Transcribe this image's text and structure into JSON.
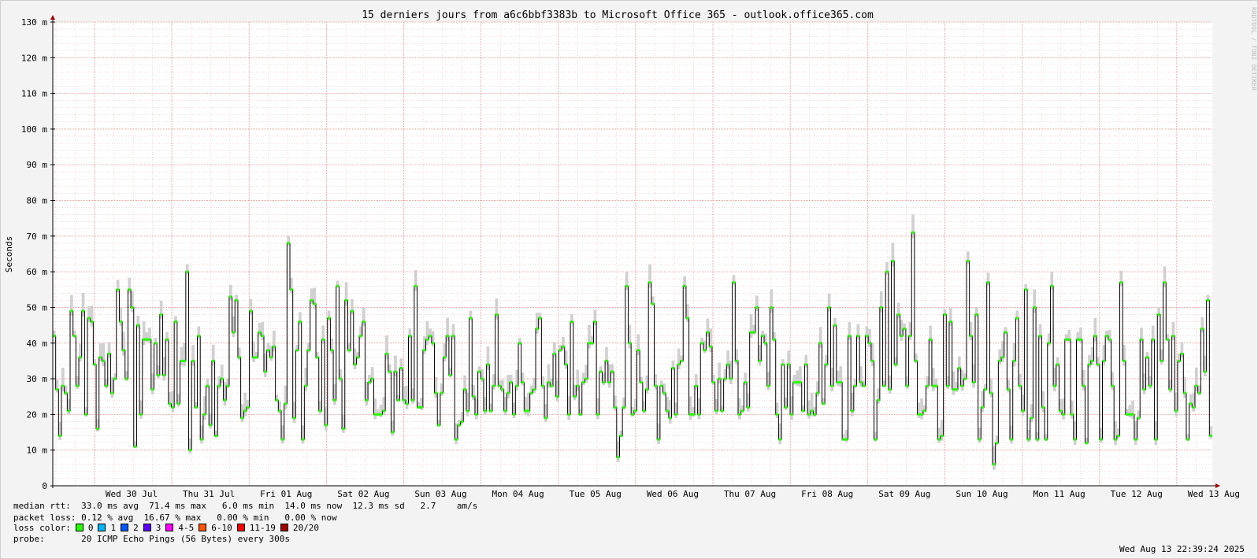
{
  "chart_data": {
    "type": "line",
    "title": "15 derniers jours from a6c6bbf3383b to Microsoft Office 365 - outlook.office365.com",
    "ylabel": "Seconds",
    "ylim": [
      0,
      0.13
    ],
    "y_ticks": [
      "0",
      "10 m",
      "20 m",
      "30 m",
      "40 m",
      "50 m",
      "60 m",
      "70 m",
      "80 m",
      "90 m",
      "100 m",
      "110 m",
      "120 m",
      "130 m"
    ],
    "x_ticks": [
      "Wed 30 Jul",
      "Thu 31 Jul",
      "Fri 01 Aug",
      "Sat 02 Aug",
      "Sun 03 Aug",
      "Mon 04 Aug",
      "Tue 05 Aug",
      "Wed 06 Aug",
      "Thu 07 Aug",
      "Fri 08 Aug",
      "Sat 09 Aug",
      "Sun 10 Aug",
      "Mon 11 Aug",
      "Tue 12 Aug",
      "Wed 13 Aug"
    ],
    "series": [
      {
        "name": "median rtt",
        "values": [
          42,
          27,
          14,
          28,
          26,
          21,
          49,
          42,
          28,
          36,
          49,
          20,
          47,
          46,
          34,
          16,
          36,
          35,
          28,
          37,
          26,
          30,
          55,
          46,
          38,
          30,
          55,
          50,
          11,
          45,
          20,
          41,
          41,
          41,
          27,
          40,
          31,
          48,
          31,
          41,
          23,
          22,
          46,
          23,
          35,
          35,
          60,
          10,
          35,
          22,
          42,
          13,
          20,
          28,
          17,
          35,
          14,
          28,
          30,
          24,
          28,
          53,
          43,
          52,
          36,
          19,
          21,
          22,
          49,
          36,
          36,
          43,
          42,
          32,
          38,
          36,
          39,
          24,
          21,
          13,
          23,
          68,
          55,
          19,
          38,
          46,
          13,
          28,
          38,
          52,
          51,
          36,
          21,
          41,
          17,
          47,
          38,
          24,
          56,
          30,
          16,
          52,
          38,
          49,
          34,
          36,
          42,
          46,
          24,
          29,
          30,
          20,
          20,
          20,
          21,
          37,
          32,
          15,
          32,
          24,
          33,
          24,
          23,
          42,
          24,
          56,
          22,
          22,
          38,
          41,
          42,
          40,
          26,
          17,
          26,
          36,
          42,
          31,
          42,
          13,
          17,
          18,
          27,
          21,
          47,
          25,
          20,
          32,
          30,
          21,
          34,
          21,
          28,
          48,
          28,
          27,
          21,
          26,
          29,
          20,
          28,
          40,
          29,
          21,
          21,
          26,
          27,
          44,
          47,
          28,
          19,
          29,
          28,
          37,
          25,
          38,
          39,
          34,
          20,
          46,
          25,
          28,
          20,
          29,
          30,
          40,
          40,
          46,
          20,
          32,
          29,
          35,
          29,
          32,
          22,
          8,
          14,
          22,
          56,
          40,
          20,
          21,
          38,
          29,
          21,
          27,
          57,
          51,
          28,
          13,
          28,
          26,
          21,
          19,
          33,
          20,
          34,
          35,
          56,
          47,
          20,
          20,
          28,
          20,
          40,
          38,
          43,
          39,
          29,
          21,
          30,
          21,
          30,
          34,
          30,
          57,
          35,
          20,
          21,
          29,
          22,
          43,
          43,
          50,
          35,
          42,
          40,
          28,
          50,
          41,
          20,
          13,
          34,
          22,
          34,
          20,
          29,
          29,
          29,
          21,
          34,
          20,
          21,
          20,
          26,
          40,
          23,
          34,
          50,
          28,
          45,
          29,
          29,
          13,
          13,
          42,
          21,
          28,
          42,
          29,
          28,
          42,
          40,
          35,
          13,
          24,
          50,
          28,
          60,
          27,
          63,
          34,
          48,
          42,
          44,
          28,
          42,
          71,
          35,
          20,
          20,
          21,
          28,
          41,
          28,
          28,
          13,
          14,
          48,
          28,
          46,
          27,
          27,
          33,
          28,
          30,
          63,
          42,
          29,
          48,
          13,
          22,
          27,
          57,
          26,
          6,
          12,
          35,
          36,
          43,
          27,
          13,
          35,
          47,
          28,
          21,
          55,
          13,
          19,
          50,
          13,
          42,
          22,
          13,
          40,
          56,
          28,
          34,
          21,
          20,
          41,
          41,
          20,
          13,
          41,
          41,
          28,
          12,
          34,
          35,
          42,
          34,
          13,
          35,
          42,
          41,
          28,
          13,
          14,
          57,
          35,
          20,
          20,
          20,
          13,
          19,
          41,
          27,
          36,
          28,
          41,
          13,
          48,
          35,
          57,
          41,
          27,
          42,
          21,
          35,
          37,
          26,
          13,
          23,
          22,
          28,
          26,
          44,
          32,
          52,
          14
        ]
      }
    ],
    "grid": true,
    "legend": {
      "rtt": "median rtt:  33.0 ms avg  71.4 ms max   6.0 ms min  14.0 ms now  12.3 ms sd   2.7    am/s",
      "loss": "packet loss: 0.12 % avg  16.67 % max   0.00 % min   0.00 % now",
      "loss_color_label": "loss color:",
      "loss_colors": [
        {
          "label": "0",
          "color": "#26ff00"
        },
        {
          "label": "1",
          "color": "#00b8ff"
        },
        {
          "label": "2",
          "color": "#0059ff"
        },
        {
          "label": "3",
          "color": "#5e00ff"
        },
        {
          "label": "4-5",
          "color": "#ff00ff"
        },
        {
          "label": "6-10",
          "color": "#ff5500"
        },
        {
          "label": "11-19",
          "color": "#ff0000"
        },
        {
          "label": "20/20",
          "color": "#a10000"
        }
      ],
      "probe": "probe:       20 ICMP Echo Pings (56 Bytes) every 300s"
    },
    "timestamp": "Wed Aug 13 22:39:24 2025",
    "watermark": "RRDTOOL / TOBI OETIKER"
  }
}
